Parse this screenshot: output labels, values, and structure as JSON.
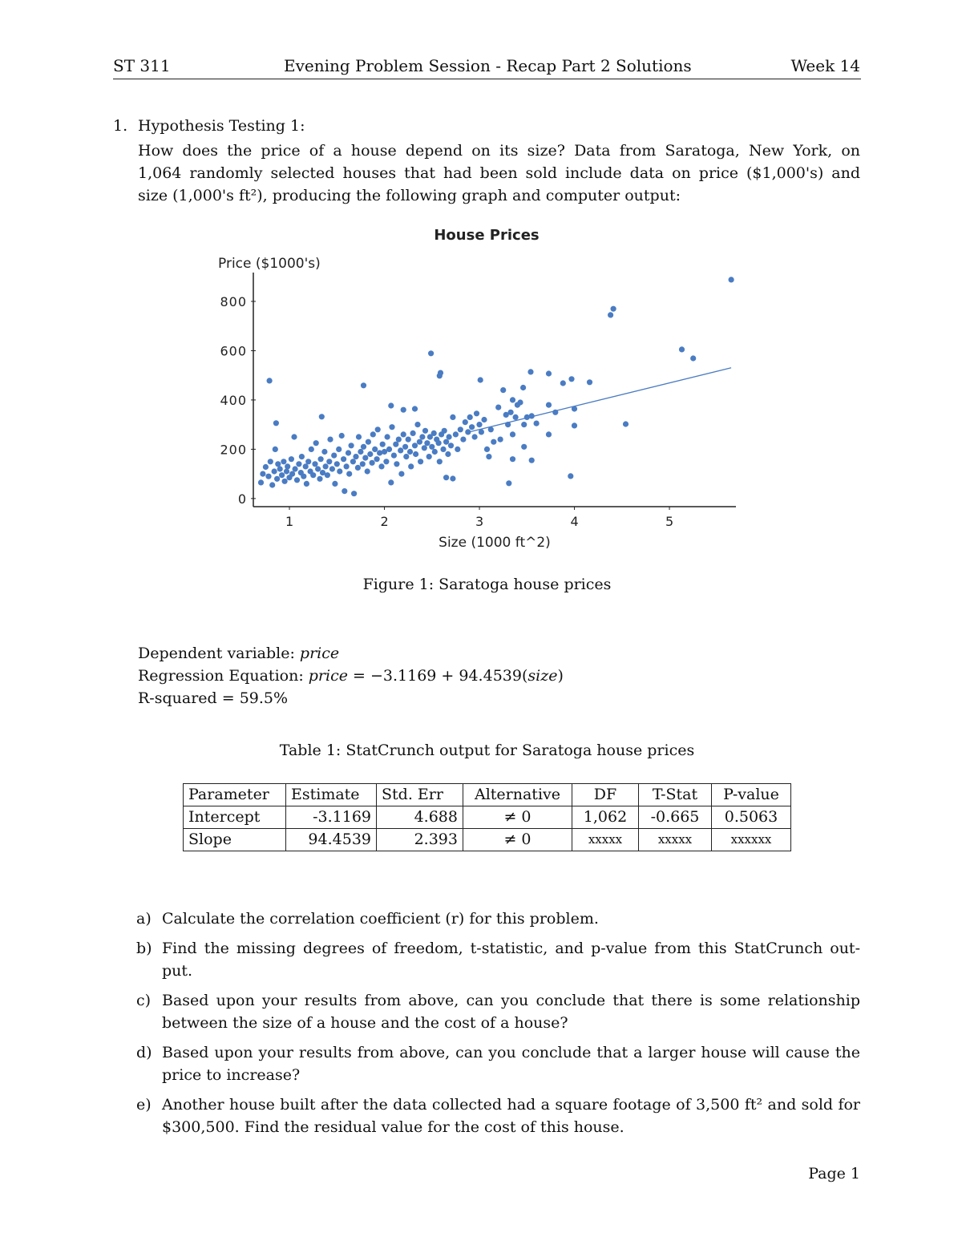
{
  "header": {
    "course": "ST 311",
    "title": "Evening Problem Session - Recap Part 2 Solutions",
    "week": "Week 14"
  },
  "problem": {
    "number": "1.",
    "heading": "Hypothesis Testing 1:",
    "lines": [
      "How does the price of a house depend on its size?  Data from Saratoga, New York, on",
      "1,064 randomly selected houses that had been sold include data on price ($1,000's) and",
      "size (1,000's ft²), producing the following graph and computer output:"
    ]
  },
  "figure_caption": "Figure 1: Saratoga house prices",
  "chart_data": {
    "type": "scatter",
    "title": "House Prices",
    "xlabel": "Size (1000 ft^2)",
    "ylabel": "Price ($1000's)",
    "xlim": [
      0.62,
      5.7
    ],
    "ylim": [
      -33,
      917
    ],
    "xticks": [
      "1",
      "2",
      "3",
      "4",
      "5"
    ],
    "yticks": [
      "0",
      "200",
      "400",
      "600",
      "800"
    ],
    "grid": false,
    "color": "#4a7cc3",
    "regression": {
      "intercept": -3.1169,
      "slope": 94.4539,
      "x_range": [
        2.9,
        5.65
      ]
    },
    "points": [
      [
        0.7,
        65
      ],
      [
        0.72,
        100
      ],
      [
        0.75,
        128
      ],
      [
        0.78,
        90
      ],
      [
        0.8,
        150
      ],
      [
        0.82,
        55
      ],
      [
        0.84,
        110
      ],
      [
        0.85,
        200
      ],
      [
        0.87,
        80
      ],
      [
        0.88,
        140
      ],
      [
        0.9,
        120
      ],
      [
        0.92,
        95
      ],
      [
        0.94,
        150
      ],
      [
        0.95,
        70
      ],
      [
        0.97,
        110
      ],
      [
        0.98,
        130
      ],
      [
        1.0,
        85
      ],
      [
        1.02,
        160
      ],
      [
        1.03,
        100
      ],
      [
        1.05,
        250
      ],
      [
        1.06,
        120
      ],
      [
        1.08,
        75
      ],
      [
        1.1,
        140
      ],
      [
        1.12,
        105
      ],
      [
        1.13,
        170
      ],
      [
        1.15,
        90
      ],
      [
        1.17,
        130
      ],
      [
        1.18,
        60
      ],
      [
        1.2,
        150
      ],
      [
        1.22,
        110
      ],
      [
        1.23,
        200
      ],
      [
        1.25,
        95
      ],
      [
        1.27,
        140
      ],
      [
        1.28,
        225
      ],
      [
        1.3,
        120
      ],
      [
        1.32,
        80
      ],
      [
        1.33,
        160
      ],
      [
        1.35,
        105
      ],
      [
        1.37,
        190
      ],
      [
        1.38,
        130
      ],
      [
        1.4,
        95
      ],
      [
        1.42,
        150
      ],
      [
        1.43,
        240
      ],
      [
        1.45,
        120
      ],
      [
        1.47,
        175
      ],
      [
        1.48,
        60
      ],
      [
        1.5,
        140
      ],
      [
        1.52,
        200
      ],
      [
        1.53,
        110
      ],
      [
        1.55,
        255
      ],
      [
        1.57,
        160
      ],
      [
        1.58,
        30
      ],
      [
        1.6,
        130
      ],
      [
        1.62,
        185
      ],
      [
        1.63,
        100
      ],
      [
        1.65,
        215
      ],
      [
        1.67,
        150
      ],
      [
        1.68,
        20
      ],
      [
        1.7,
        170
      ],
      [
        1.72,
        125
      ],
      [
        1.73,
        250
      ],
      [
        1.75,
        190
      ],
      [
        1.77,
        140
      ],
      [
        1.78,
        210
      ],
      [
        1.8,
        165
      ],
      [
        1.82,
        110
      ],
      [
        1.83,
        230
      ],
      [
        1.85,
        180
      ],
      [
        1.87,
        145
      ],
      [
        1.88,
        260
      ],
      [
        1.9,
        200
      ],
      [
        1.92,
        160
      ],
      [
        1.93,
        280
      ],
      [
        1.95,
        185
      ],
      [
        1.97,
        130
      ],
      [
        1.98,
        220
      ],
      [
        2.0,
        190
      ],
      [
        2.02,
        150
      ],
      [
        2.03,
        250
      ],
      [
        2.05,
        200
      ],
      [
        2.07,
        65
      ],
      [
        2.08,
        290
      ],
      [
        2.1,
        175
      ],
      [
        2.12,
        220
      ],
      [
        2.13,
        140
      ],
      [
        2.15,
        240
      ],
      [
        2.17,
        195
      ],
      [
        2.18,
        100
      ],
      [
        2.2,
        260
      ],
      [
        2.22,
        210
      ],
      [
        2.23,
        170
      ],
      [
        2.25,
        240
      ],
      [
        2.27,
        190
      ],
      [
        2.28,
        130
      ],
      [
        2.3,
        265
      ],
      [
        2.32,
        215
      ],
      [
        2.33,
        180
      ],
      [
        2.35,
        300
      ],
      [
        2.37,
        230
      ],
      [
        2.38,
        150
      ],
      [
        2.4,
        250
      ],
      [
        2.42,
        205
      ],
      [
        2.43,
        275
      ],
      [
        2.45,
        225
      ],
      [
        2.47,
        170
      ],
      [
        2.48,
        250
      ],
      [
        2.5,
        210
      ],
      [
        2.52,
        265
      ],
      [
        2.53,
        190
      ],
      [
        2.55,
        240
      ],
      [
        2.57,
        225
      ],
      [
        2.58,
        150
      ],
      [
        2.6,
        260
      ],
      [
        2.62,
        200
      ],
      [
        2.63,
        275
      ],
      [
        2.65,
        230
      ],
      [
        2.67,
        180
      ],
      [
        2.68,
        250
      ],
      [
        2.7,
        215
      ],
      [
        2.72,
        330
      ],
      [
        2.75,
        260
      ],
      [
        2.77,
        200
      ],
      [
        2.8,
        280
      ],
      [
        2.83,
        240
      ],
      [
        2.85,
        310
      ],
      [
        2.88,
        270
      ],
      [
        2.9,
        330
      ],
      [
        2.92,
        290
      ],
      [
        2.95,
        250
      ],
      [
        2.97,
        345
      ],
      [
        3.0,
        300
      ],
      [
        3.02,
        270
      ],
      [
        3.05,
        320
      ],
      [
        3.08,
        200
      ],
      [
        3.1,
        170
      ],
      [
        3.12,
        280
      ],
      [
        3.15,
        230
      ],
      [
        3.2,
        370
      ],
      [
        3.22,
        240
      ],
      [
        3.25,
        440
      ],
      [
        3.28,
        340
      ],
      [
        3.3,
        300
      ],
      [
        3.33,
        350
      ],
      [
        3.35,
        260
      ],
      [
        3.38,
        330
      ],
      [
        3.4,
        380
      ],
      [
        3.43,
        390
      ],
      [
        3.47,
        300
      ],
      [
        3.5,
        330
      ],
      [
        3.55,
        335
      ],
      [
        3.6,
        305
      ],
      [
        3.73,
        260
      ],
      [
        3.8,
        350
      ],
      [
        3.46,
        450
      ],
      [
        3.35,
        400
      ],
      [
        3.47,
        210
      ],
      [
        3.35,
        160
      ],
      [
        3.55,
        155
      ],
      [
        5.65,
        888
      ],
      [
        4.41,
        770
      ],
      [
        4.38,
        745
      ],
      [
        2.49,
        589
      ],
      [
        2.59,
        510
      ],
      [
        2.58,
        498
      ],
      [
        5.13,
        605
      ],
      [
        5.25,
        569
      ],
      [
        0.79,
        478
      ],
      [
        1.78,
        459
      ],
      [
        3.01,
        481
      ],
      [
        3.54,
        514
      ],
      [
        3.73,
        507
      ],
      [
        3.88,
        468
      ],
      [
        3.97,
        485
      ],
      [
        4.16,
        472
      ],
      [
        3.73,
        380
      ],
      [
        4.0,
        364
      ],
      [
        4.0,
        296
      ],
      [
        4.54,
        302
      ],
      [
        3.96,
        91
      ],
      [
        3.31,
        62
      ],
      [
        0.86,
        306
      ],
      [
        1.34,
        332
      ],
      [
        2.07,
        377
      ],
      [
        2.32,
        364
      ],
      [
        2.72,
        81
      ],
      [
        2.65,
        85
      ],
      [
        2.2,
        360
      ]
    ]
  },
  "regression": {
    "dep_label": "Dependent variable: ",
    "dep_var": "price",
    "eq_label": "Regression Equation: ",
    "eq_lhs": "price",
    "eq_mid": " = −3.1169 + 94.4539(",
    "eq_var": "size",
    "eq_end": ")",
    "r2": "R-squared = 59.5%"
  },
  "table": {
    "caption": "Table 1: StatCrunch output for Saratoga house prices",
    "headers": [
      "Parameter",
      "Estimate",
      "Std. Err",
      "Alternative",
      "DF",
      "T-Stat",
      "P-value"
    ],
    "rows": [
      [
        "Intercept",
        "-3.1169",
        "4.688",
        "≠ 0",
        "1,062",
        "-0.665",
        "0.5063"
      ],
      [
        "Slope",
        "94.4539",
        "2.393",
        "≠ 0",
        "xxxxx",
        "xxxxx",
        "xxxxxx"
      ]
    ]
  },
  "questions": [
    {
      "label": "a)",
      "text": "Calculate the correlation coefficient (r) for this problem."
    },
    {
      "label": "b)",
      "text": "Find the missing degrees of freedom, t-statistic, and p-value from this StatCrunch out-put."
    },
    {
      "label": "c)",
      "text": "Based upon your results from above, can you conclude that there is some relationship between the size of a house and the cost of a house?"
    },
    {
      "label": "d)",
      "text": "Based upon your results from above, can you conclude that a larger house will cause the price to increase?"
    },
    {
      "label": "e)",
      "text": "Another house built after the data collected had a square footage of 3,500 ft² and sold for $300,500. Find the residual value for the cost of this house."
    }
  ],
  "footer": {
    "page": "Page 1"
  }
}
